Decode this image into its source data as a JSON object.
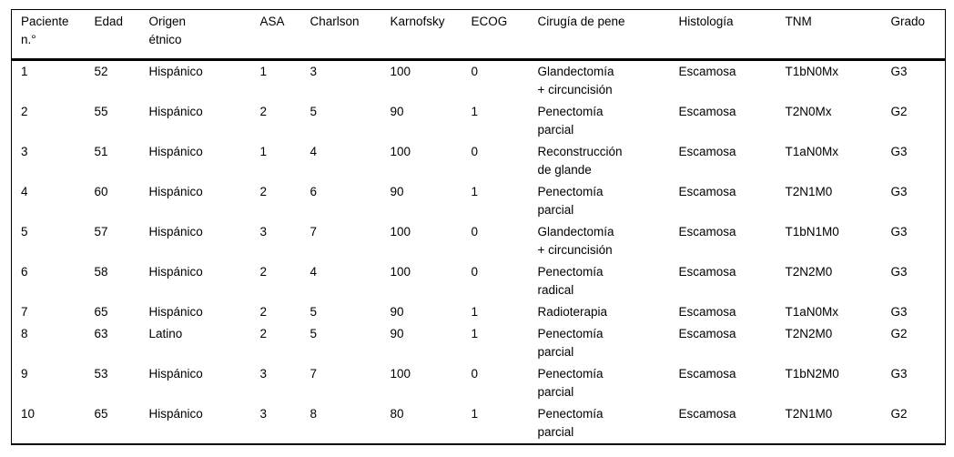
{
  "page": {
    "background": "#ffffff",
    "text_color": "#000000",
    "rule_color": "#000000"
  },
  "table": {
    "columns": [
      {
        "key": "paciente",
        "label": "Paciente\nn.°"
      },
      {
        "key": "edad",
        "label": "Edad"
      },
      {
        "key": "origen-etnico",
        "label": "Origen\nétnico"
      },
      {
        "key": "asa",
        "label": "ASA"
      },
      {
        "key": "charlson",
        "label": "Charlson"
      },
      {
        "key": "karnofsky",
        "label": "Karnofsky"
      },
      {
        "key": "ecog",
        "label": "ECOG"
      },
      {
        "key": "cirugia-de-pene",
        "label": "Cirugía de pene"
      },
      {
        "key": "histologia",
        "label": "Histología"
      },
      {
        "key": "tnm",
        "label": "TNM"
      },
      {
        "key": "grado",
        "label": "Grado"
      }
    ],
    "rows": [
      [
        "1",
        "52",
        "Hispánico",
        "1",
        "3",
        "100",
        "0",
        "Glandectomía\n+ circuncisión",
        "Escamosa",
        "T1bN0Mx",
        "G3"
      ],
      [
        "2",
        "55",
        "Hispánico",
        "2",
        "5",
        "90",
        "1",
        "Penectomía\nparcial",
        "Escamosa",
        "T2N0Mx",
        "G2"
      ],
      [
        "3",
        "51",
        "Hispánico",
        "1",
        "4",
        "100",
        "0",
        "Reconstrucción\nde glande",
        "Escamosa",
        "T1aN0Mx",
        "G3"
      ],
      [
        "4",
        "60",
        "Hispánico",
        "2",
        "6",
        "90",
        "1",
        "Penectomía\nparcial",
        "Escamosa",
        "T2N1M0",
        "G3"
      ],
      [
        "5",
        "57",
        "Hispánico",
        "3",
        "7",
        "100",
        "0",
        "Glandectomía\n+ circuncisión",
        "Escamosa",
        "T1bN1M0",
        "G3"
      ],
      [
        "6",
        "58",
        "Hispánico",
        "2",
        "4",
        "100",
        "0",
        "Penectomía\nradical",
        "Escamosa",
        "T2N2M0",
        "G3"
      ],
      [
        "7",
        "65",
        "Hispánico",
        "2",
        "5",
        "90",
        "1",
        "Radioterapia",
        "Escamosa",
        "T1aN0Mx",
        "G3"
      ],
      [
        "8",
        "63",
        "Latino",
        "2",
        "5",
        "90",
        "1",
        "Penectomía\nparcial",
        "Escamosa",
        "T2N2M0",
        "G2"
      ],
      [
        "9",
        "53",
        "Hispánico",
        "3",
        "7",
        "100",
        "0",
        "Penectomía\nparcial",
        "Escamosa",
        "T1bN2M0",
        "G3"
      ],
      [
        "10",
        "65",
        "Hispánico",
        "3",
        "8",
        "80",
        "1",
        "Penectomía\nparcial",
        "Escamosa",
        "T2N1M0",
        "G2"
      ]
    ]
  }
}
